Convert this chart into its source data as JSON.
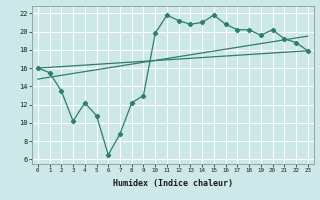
{
  "title": "",
  "xlabel": "Humidex (Indice chaleur)",
  "ylabel": "",
  "bg_color": "#cce8e8",
  "grid_color": "#ffffff",
  "line_color": "#2e7d6e",
  "xlim": [
    -0.5,
    23.5
  ],
  "ylim": [
    5.5,
    22.8
  ],
  "yticks": [
    6,
    8,
    10,
    12,
    14,
    16,
    18,
    20,
    22
  ],
  "xticks": [
    0,
    1,
    2,
    3,
    4,
    5,
    6,
    7,
    8,
    9,
    10,
    11,
    12,
    13,
    14,
    15,
    16,
    17,
    18,
    19,
    20,
    21,
    22,
    23
  ],
  "jagged_x": [
    0,
    1,
    2,
    3,
    4,
    5,
    6,
    7,
    8,
    9,
    10,
    11,
    12,
    13,
    14,
    15,
    16,
    17,
    18,
    19,
    20,
    21,
    22,
    23
  ],
  "jagged_y": [
    16.0,
    15.5,
    13.5,
    10.2,
    12.2,
    10.8,
    6.5,
    8.8,
    12.2,
    13.0,
    19.8,
    21.8,
    21.2,
    20.8,
    21.0,
    21.8,
    20.8,
    20.2,
    20.2,
    19.6,
    20.2,
    19.2,
    18.8,
    17.9
  ],
  "line1_x": [
    0,
    23
  ],
  "line1_y": [
    16.0,
    17.9
  ],
  "line2_x": [
    0,
    23
  ],
  "line2_y": [
    14.8,
    19.5
  ]
}
